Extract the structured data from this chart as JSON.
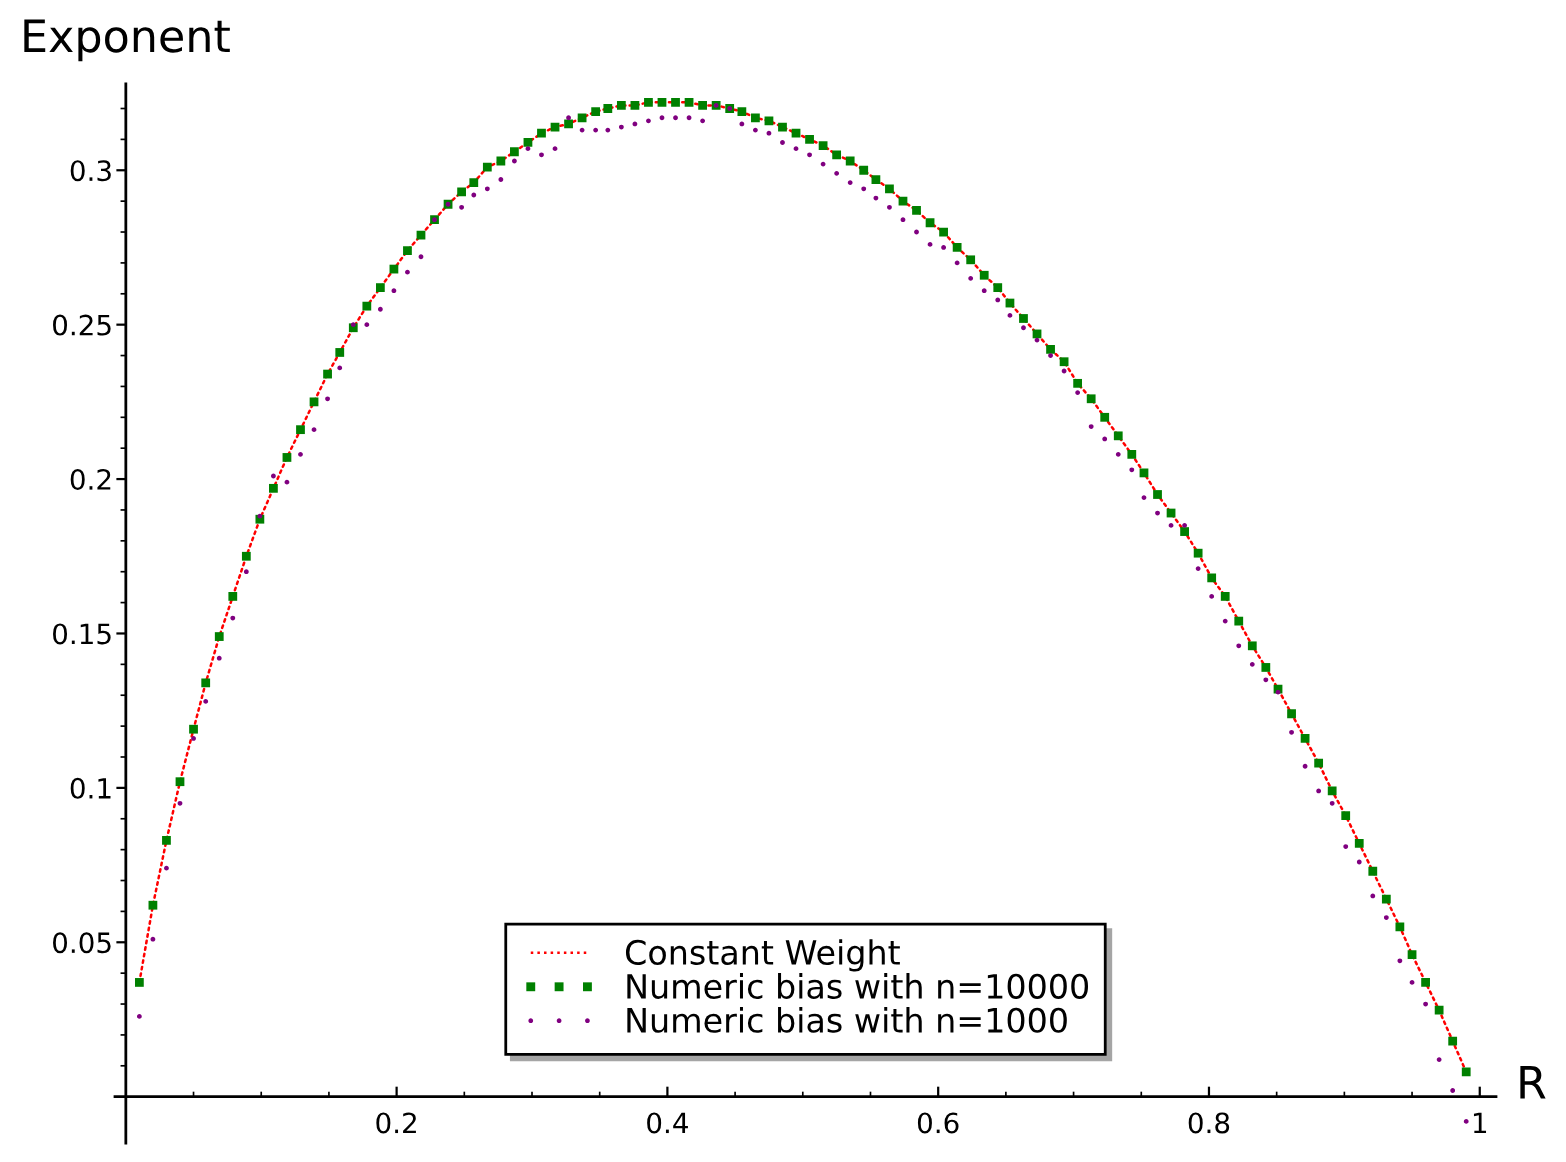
{
  "chart_data": {
    "type": "scatter",
    "xlabel": "R",
    "ylabel": "Exponent",
    "xlim": [
      -0.008,
      1.012
    ],
    "ylim": [
      -0.015,
      0.328
    ],
    "xticks": [
      {
        "value": 0.05,
        "label": null
      },
      {
        "value": 0.1,
        "label": null
      },
      {
        "value": 0.15,
        "label": null
      },
      0.2,
      {
        "value": 0.25,
        "label": null
      },
      {
        "value": 0.3,
        "label": null
      },
      {
        "value": 0.35,
        "label": null
      },
      0.4,
      {
        "value": 0.45,
        "label": null
      },
      {
        "value": 0.5,
        "label": null
      },
      {
        "value": 0.55,
        "label": null
      },
      0.6,
      {
        "value": 0.65,
        "label": null
      },
      {
        "value": 0.7,
        "label": null
      },
      {
        "value": 0.75,
        "label": null
      },
      0.8,
      {
        "value": 0.85,
        "label": null
      },
      {
        "value": 0.9,
        "label": null
      },
      {
        "value": 0.95,
        "label": null
      },
      1
    ],
    "yticks": [
      {
        "value": 0.01,
        "label": null
      },
      {
        "value": 0.02,
        "label": null
      },
      {
        "value": 0.03,
        "label": null
      },
      {
        "value": 0.04,
        "label": null
      },
      0.05,
      {
        "value": 0.06,
        "label": null
      },
      {
        "value": 0.07,
        "label": null
      },
      {
        "value": 0.08,
        "label": null
      },
      {
        "value": 0.09,
        "label": null
      },
      0.1,
      {
        "value": 0.11,
        "label": null
      },
      {
        "value": 0.12,
        "label": null
      },
      {
        "value": 0.13,
        "label": null
      },
      {
        "value": 0.14,
        "label": null
      },
      0.15,
      {
        "value": 0.16,
        "label": null
      },
      {
        "value": 0.17,
        "label": null
      },
      {
        "value": 0.18,
        "label": null
      },
      {
        "value": 0.19,
        "label": null
      },
      0.2,
      {
        "value": 0.21,
        "label": null
      },
      {
        "value": 0.22,
        "label": null
      },
      {
        "value": 0.23,
        "label": null
      },
      {
        "value": 0.24,
        "label": null
      },
      0.25,
      {
        "value": 0.26,
        "label": null
      },
      {
        "value": 0.27,
        "label": null
      },
      {
        "value": 0.28,
        "label": null
      },
      {
        "value": 0.29,
        "label": null
      },
      0.3,
      {
        "value": 0.31,
        "label": null
      },
      {
        "value": 0.32,
        "label": null
      }
    ],
    "grid": false,
    "legend": "bottom",
    "x": [
      0.01,
      0.02,
      0.03,
      0.04,
      0.05,
      0.059,
      0.069,
      0.079,
      0.089,
      0.099,
      0.109,
      0.119,
      0.129,
      0.139,
      0.149,
      0.158,
      0.168,
      0.178,
      0.188,
      0.198,
      0.208,
      0.218,
      0.228,
      0.238,
      0.248,
      0.257,
      0.267,
      0.277,
      0.287,
      0.297,
      0.307,
      0.317,
      0.327,
      0.337,
      0.347,
      0.356,
      0.366,
      0.376,
      0.386,
      0.396,
      0.406,
      0.416,
      0.426,
      0.436,
      0.446,
      0.455,
      0.465,
      0.475,
      0.485,
      0.495,
      0.505,
      0.515,
      0.525,
      0.535,
      0.545,
      0.554,
      0.564,
      0.574,
      0.584,
      0.594,
      0.604,
      0.614,
      0.624,
      0.634,
      0.644,
      0.653,
      0.663,
      0.673,
      0.683,
      0.693,
      0.703,
      0.713,
      0.723,
      0.733,
      0.743,
      0.752,
      0.762,
      0.772,
      0.782,
      0.792,
      0.802,
      0.812,
      0.822,
      0.832,
      0.842,
      0.851,
      0.861,
      0.871,
      0.881,
      0.891,
      0.901,
      0.911,
      0.921,
      0.931,
      0.941,
      0.95,
      0.96,
      0.97,
      0.98,
      0.99
    ],
    "series": [
      {
        "name": "Constant Weight",
        "type": "line",
        "color": "#ff0000",
        "line_style": "dotted",
        "marker": "none",
        "values": [
          0.037,
          0.062,
          0.083,
          0.102,
          0.119,
          0.134,
          0.149,
          0.162,
          0.175,
          0.187,
          0.197,
          0.207,
          0.216,
          0.225,
          0.234,
          0.241,
          0.249,
          0.256,
          0.262,
          0.268,
          0.274,
          0.279,
          0.284,
          0.289,
          0.293,
          0.296,
          0.301,
          0.303,
          0.306,
          0.309,
          0.312,
          0.314,
          0.315,
          0.317,
          0.319,
          0.32,
          0.321,
          0.321,
          0.322,
          0.322,
          0.322,
          0.322,
          0.321,
          0.321,
          0.32,
          0.319,
          0.317,
          0.316,
          0.314,
          0.312,
          0.31,
          0.308,
          0.305,
          0.303,
          0.3,
          0.297,
          0.294,
          0.29,
          0.287,
          0.283,
          0.28,
          0.275,
          0.271,
          0.266,
          0.262,
          0.257,
          0.252,
          0.247,
          0.242,
          0.238,
          0.231,
          0.226,
          0.22,
          0.214,
          0.208,
          0.202,
          0.195,
          0.189,
          0.183,
          0.176,
          0.168,
          0.162,
          0.154,
          0.146,
          0.139,
          0.132,
          0.124,
          0.116,
          0.108,
          0.099,
          0.091,
          0.082,
          0.073,
          0.064,
          0.055,
          0.046,
          0.037,
          0.028,
          0.018,
          0.008
        ]
      },
      {
        "name": "Numeric bias with n=10000",
        "color": "#008000",
        "marker": "square",
        "values": [
          0.037,
          0.062,
          0.083,
          0.102,
          0.119,
          0.134,
          0.149,
          0.162,
          0.175,
          0.187,
          0.197,
          0.207,
          0.216,
          0.225,
          0.234,
          0.241,
          0.249,
          0.256,
          0.262,
          0.268,
          0.274,
          0.279,
          0.284,
          0.289,
          0.293,
          0.296,
          0.301,
          0.303,
          0.306,
          0.309,
          0.312,
          0.314,
          0.315,
          0.317,
          0.319,
          0.32,
          0.321,
          0.321,
          0.322,
          0.322,
          0.322,
          0.322,
          0.321,
          0.321,
          0.32,
          0.319,
          0.317,
          0.316,
          0.314,
          0.312,
          0.31,
          0.308,
          0.305,
          0.303,
          0.3,
          0.297,
          0.294,
          0.29,
          0.287,
          0.283,
          0.28,
          0.275,
          0.271,
          0.266,
          0.262,
          0.257,
          0.252,
          0.247,
          0.242,
          0.238,
          0.231,
          0.226,
          0.22,
          0.214,
          0.208,
          0.202,
          0.195,
          0.189,
          0.183,
          0.176,
          0.168,
          0.162,
          0.154,
          0.146,
          0.139,
          0.132,
          0.124,
          0.116,
          0.108,
          0.099,
          0.091,
          0.082,
          0.073,
          0.064,
          0.055,
          0.046,
          0.037,
          0.028,
          0.018,
          0.008
        ]
      },
      {
        "name": "Numeric bias with n=1000",
        "color": "#800080",
        "marker": "circle",
        "values": [
          0.026,
          0.051,
          0.074,
          0.095,
          0.116,
          0.128,
          0.142,
          0.155,
          0.17,
          0.188,
          0.201,
          0.199,
          0.208,
          0.216,
          0.226,
          0.236,
          0.25,
          0.25,
          0.255,
          0.261,
          0.267,
          0.272,
          0.284,
          0.289,
          0.288,
          0.292,
          0.294,
          0.297,
          0.303,
          0.307,
          0.305,
          0.307,
          0.317,
          0.313,
          0.313,
          0.313,
          0.314,
          0.315,
          0.316,
          0.317,
          0.317,
          0.317,
          0.316,
          0.321,
          0.32,
          0.315,
          0.313,
          0.312,
          0.309,
          0.307,
          0.305,
          0.302,
          0.299,
          0.296,
          0.294,
          0.291,
          0.288,
          0.284,
          0.28,
          0.276,
          0.275,
          0.27,
          0.265,
          0.261,
          0.258,
          0.253,
          0.249,
          0.245,
          0.24,
          0.235,
          0.228,
          0.217,
          0.213,
          0.208,
          0.203,
          0.194,
          0.189,
          0.185,
          0.185,
          0.171,
          0.162,
          0.154,
          0.146,
          0.14,
          0.135,
          0.131,
          0.118,
          0.107,
          0.099,
          0.095,
          0.081,
          0.076,
          0.065,
          0.058,
          0.044,
          0.037,
          0.03,
          0.012,
          0.002,
          -0.008
        ]
      }
    ]
  }
}
